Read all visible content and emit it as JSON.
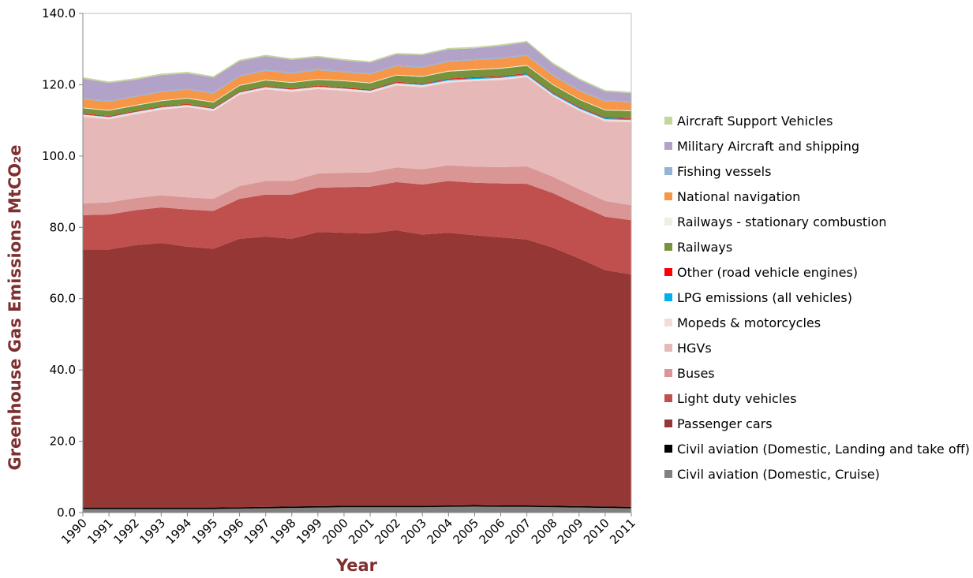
{
  "chart_data": {
    "type": "stacked_area",
    "y_label": "Greenhouse Gas Emissions MtCO₂e",
    "x_label": "Year",
    "categories": [
      "1990",
      "1991",
      "1992",
      "1993",
      "1994",
      "1995",
      "1996",
      "1997",
      "1998",
      "1999",
      "2000",
      "2001",
      "2002",
      "2003",
      "2004",
      "2005",
      "2006",
      "2007",
      "2008",
      "2009",
      "2010",
      "2011"
    ],
    "ylim": [
      0,
      140
    ],
    "yticks": [
      {
        "value": 0,
        "label": "0.0"
      },
      {
        "value": 20,
        "label": "20.0"
      },
      {
        "value": 40,
        "label": "40.0"
      },
      {
        "value": 60,
        "label": "60.0"
      },
      {
        "value": 80,
        "label": "80.0"
      },
      {
        "value": 100,
        "label": "100.0"
      },
      {
        "value": 120,
        "label": "120.0"
      },
      {
        "value": 140,
        "label": "140.0"
      }
    ],
    "grid": false,
    "legend": "right",
    "series": [
      {
        "name": "Civil aviation (Domestic, Cruise)",
        "color": "#808080",
        "values": [
          1.0,
          1.0,
          1.0,
          1.0,
          1.0,
          1.0,
          1.1,
          1.2,
          1.3,
          1.4,
          1.5,
          1.5,
          1.5,
          1.5,
          1.6,
          1.7,
          1.6,
          1.6,
          1.5,
          1.4,
          1.3,
          1.2
        ]
      },
      {
        "name": "Civil aviation (Domestic, Landing and take off)",
        "color": "#000000",
        "values": [
          0.4,
          0.4,
          0.4,
          0.4,
          0.4,
          0.4,
          0.4,
          0.4,
          0.4,
          0.4,
          0.4,
          0.4,
          0.4,
          0.4,
          0.4,
          0.4,
          0.4,
          0.4,
          0.4,
          0.4,
          0.4,
          0.4
        ]
      },
      {
        "name": "Passenger cars",
        "color": "#953735",
        "values": [
          72.4,
          72.4,
          73.6,
          74.2,
          73.2,
          72.6,
          75.3,
          75.8,
          75.1,
          76.9,
          76.6,
          76.4,
          77.3,
          76.1,
          76.5,
          75.7,
          75.2,
          74.6,
          72.4,
          69.5,
          66.3,
          65.2
        ]
      },
      {
        "name": "Light duty vehicles",
        "color": "#c0504d",
        "values": [
          9.6,
          9.8,
          9.8,
          10.0,
          10.4,
          10.6,
          11.2,
          11.8,
          12.4,
          12.4,
          12.8,
          13.1,
          13.5,
          14.0,
          14.5,
          14.7,
          15.1,
          15.6,
          15.3,
          14.9,
          15.0,
          15.2
        ]
      },
      {
        "name": "Buses",
        "color": "#d99694",
        "values": [
          3.3,
          3.4,
          3.4,
          3.4,
          3.4,
          3.4,
          3.6,
          3.8,
          3.8,
          4.0,
          4.0,
          4.0,
          4.1,
          4.3,
          4.4,
          4.5,
          4.6,
          4.9,
          4.6,
          4.5,
          4.4,
          4.2
        ]
      },
      {
        "name": "HGVs",
        "color": "#e6b9b8",
        "values": [
          24.3,
          23.3,
          23.5,
          24.0,
          25.3,
          24.6,
          25.6,
          25.7,
          25.0,
          23.7,
          23.0,
          22.3,
          23.0,
          23.0,
          23.2,
          24.0,
          24.4,
          25.0,
          22.5,
          22.0,
          22.3,
          23.3
        ]
      },
      {
        "name": "Mopeds & motorcycles",
        "color": "#f2dcdb",
        "values": [
          0.6,
          0.6,
          0.6,
          0.6,
          0.6,
          0.6,
          0.6,
          0.6,
          0.6,
          0.6,
          0.6,
          0.6,
          0.6,
          0.6,
          0.6,
          0.6,
          0.6,
          0.6,
          0.6,
          0.6,
          0.6,
          0.6
        ]
      },
      {
        "name": "LPG emissions (all vehicles)",
        "color": "#00b0f0",
        "values": [
          0.1,
          0.1,
          0.1,
          0.1,
          0.1,
          0.1,
          0.1,
          0.1,
          0.1,
          0.1,
          0.1,
          0.1,
          0.2,
          0.2,
          0.3,
          0.3,
          0.3,
          0.3,
          0.3,
          0.3,
          0.3,
          0.3
        ]
      },
      {
        "name": "Other (road vehicle engines)",
        "color": "#ff0000",
        "values": [
          0.2,
          0.2,
          0.2,
          0.2,
          0.2,
          0.2,
          0.2,
          0.2,
          0.2,
          0.2,
          0.2,
          0.2,
          0.2,
          0.2,
          0.2,
          0.2,
          0.2,
          0.2,
          0.2,
          0.2,
          0.2,
          0.2
        ]
      },
      {
        "name": "Railways",
        "color": "#77933c",
        "values": [
          1.5,
          1.5,
          1.5,
          1.5,
          1.5,
          1.5,
          1.6,
          1.6,
          1.6,
          1.7,
          1.8,
          1.8,
          1.8,
          1.9,
          2.0,
          2.0,
          2.1,
          2.1,
          2.1,
          2.0,
          2.0,
          2.0
        ]
      },
      {
        "name": "Railways - stationary combustion",
        "color": "#ebf1de",
        "values": [
          0.2,
          0.2,
          0.2,
          0.2,
          0.2,
          0.2,
          0.2,
          0.2,
          0.2,
          0.2,
          0.2,
          0.2,
          0.2,
          0.2,
          0.2,
          0.2,
          0.2,
          0.2,
          0.2,
          0.2,
          0.2,
          0.2
        ]
      },
      {
        "name": "National navigation",
        "color": "#f79646",
        "values": [
          2.3,
          2.3,
          2.3,
          2.3,
          2.3,
          2.3,
          2.4,
          2.5,
          2.4,
          2.5,
          2.3,
          2.3,
          2.4,
          2.4,
          2.5,
          2.6,
          2.6,
          2.6,
          2.4,
          2.3,
          2.3,
          2.2
        ]
      },
      {
        "name": "Fishing vessels",
        "color": "#95b3d7",
        "values": [
          0.3,
          0.3,
          0.3,
          0.3,
          0.3,
          0.3,
          0.3,
          0.3,
          0.3,
          0.3,
          0.3,
          0.3,
          0.3,
          0.3,
          0.3,
          0.3,
          0.3,
          0.3,
          0.3,
          0.3,
          0.3,
          0.3
        ]
      },
      {
        "name": "Military Aircraft and shipping",
        "color": "#b3a2c7",
        "values": [
          5.5,
          5.0,
          4.5,
          4.5,
          4.3,
          4.2,
          4.0,
          3.8,
          3.6,
          3.3,
          3.0,
          3.0,
          3.0,
          3.2,
          3.2,
          3.0,
          3.3,
          3.5,
          3.0,
          2.8,
          2.5,
          2.3
        ]
      },
      {
        "name": "Aircraft Support Vehicles",
        "color": "#c3d69b",
        "values": [
          0.4,
          0.4,
          0.4,
          0.4,
          0.4,
          0.4,
          0.4,
          0.4,
          0.4,
          0.4,
          0.4,
          0.4,
          0.4,
          0.4,
          0.4,
          0.4,
          0.4,
          0.4,
          0.4,
          0.4,
          0.4,
          0.4
        ]
      }
    ]
  }
}
